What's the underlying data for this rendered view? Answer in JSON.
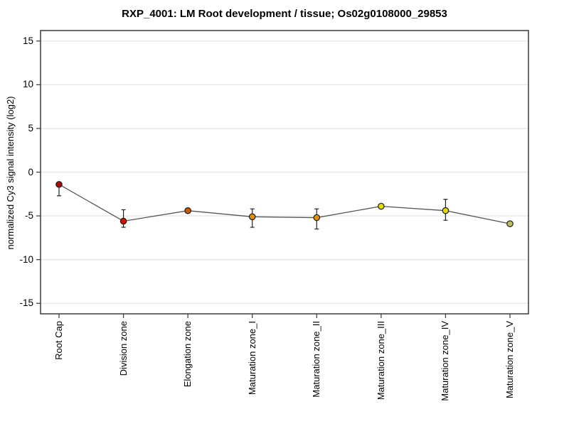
{
  "title": "RXP_4001: LM Root development / tissue; Os02g0108000_29853",
  "chart_data": {
    "type": "line",
    "title": "RXP_4001: LM Root development / tissue; Os02g0108000_29853",
    "xlabel": "",
    "ylabel": "normalized Cy3 signal intensity (log2)",
    "categories": [
      "Root Cap",
      "Division zone",
      "Elongation zone",
      "Maturation zone_I",
      "Maturation zone_II",
      "Maturation zone_III",
      "Maturation zone_IV",
      "Maturation zone_V"
    ],
    "series": [
      {
        "name": "normalized Cy3 signal intensity (log2)",
        "values": [
          -1.4,
          -5.6,
          -4.4,
          -5.1,
          -5.2,
          -3.9,
          -4.4,
          -5.9
        ],
        "err_high": [
          -1.4,
          -4.3,
          -4.4,
          -4.2,
          -4.2,
          -3.9,
          -3.1,
          -5.9
        ],
        "err_low": [
          -2.7,
          -6.3,
          -4.4,
          -6.3,
          -6.5,
          -3.9,
          -5.5,
          -5.9
        ],
        "point_colors": [
          "#ad0c0c",
          "#cc1400",
          "#d05a00",
          "#e39100",
          "#e39100",
          "#e2da00",
          "#e2da00",
          "#bfbf60"
        ]
      }
    ],
    "ylim": [
      -16.2,
      16.2
    ],
    "yticks": [
      15,
      10,
      5,
      0,
      -5,
      -10,
      -15
    ],
    "grid": true,
    "legend": "none",
    "colors": {
      "line": "#555555",
      "error_bar": "#222222",
      "grid": "#e8e8e8",
      "frame": "#3a3a3a",
      "tick": "#444444",
      "marker_outline": "#1a1a1a",
      "background": "#ffffff"
    }
  }
}
